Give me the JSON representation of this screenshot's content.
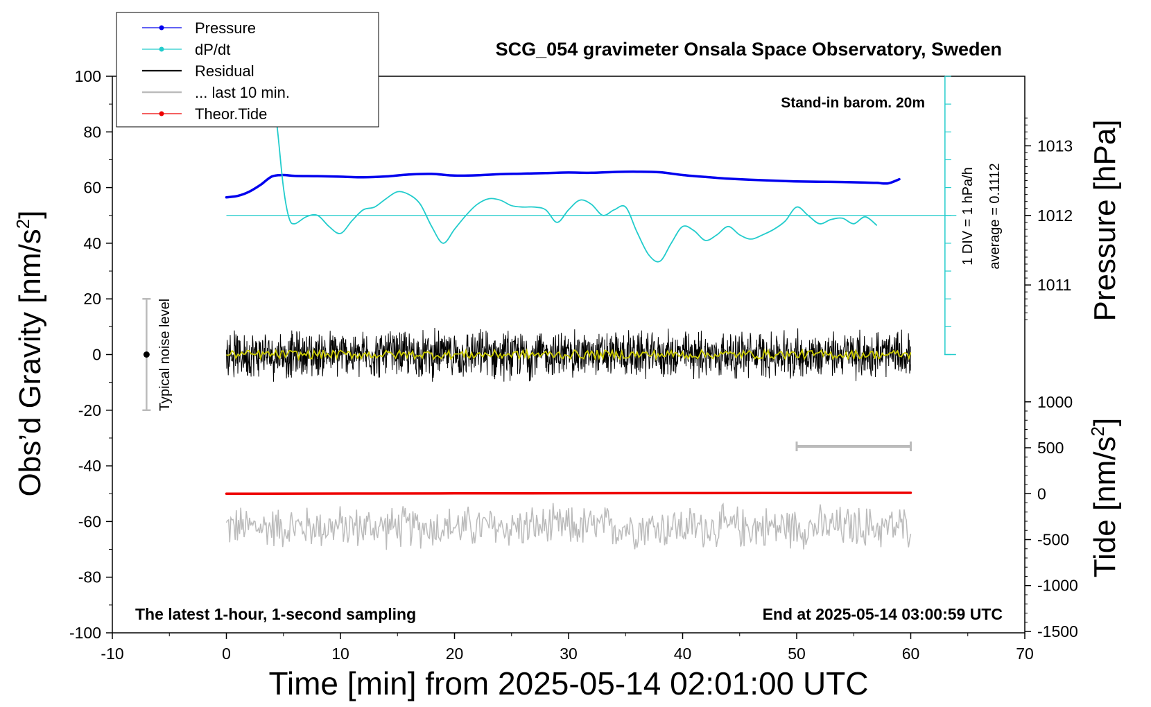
{
  "chart_data": {
    "type": "line",
    "title": "SCG_054 gravimeter Onsala Space Observatory, Sweden",
    "xlabel": "Time [min] from 2025-05-14 02:01:00 UTC",
    "ylabel_left": {
      "main": "Obs’d Gravity [nm/s",
      "sup": "2",
      "end": "]"
    },
    "ylabel_right_pressure": "Pressure [hPa]",
    "ylabel_right_tide": {
      "main": "Tide [nm/s",
      "sup": "2",
      "end": "]"
    },
    "xlim": [
      -10,
      70
    ],
    "ylim": [
      -100,
      100
    ],
    "x_ticks": [
      -10,
      0,
      10,
      20,
      30,
      40,
      50,
      60,
      70
    ],
    "y_ticks": [
      -100,
      -80,
      -60,
      -40,
      -20,
      0,
      20,
      40,
      60,
      80,
      100
    ],
    "pressure_axis": {
      "ticks": [
        1011,
        1012,
        1013
      ]
    },
    "tide_axis": {
      "ticks": [
        1000,
        500,
        0,
        -500,
        -1000,
        -1500
      ]
    },
    "annotations": {
      "barometer": "Stand-in barom. 20m",
      "div_scale": "1 DIV = 1 hPa/h",
      "average": "average = 0.1112",
      "noise": "Typical noise level",
      "bottom_left": "The latest 1-hour, 1-second sampling",
      "bottom_right": "End at 2025-05-14 03:00:59 UTC"
    },
    "legend": {
      "position": "top-left",
      "entries": [
        {
          "label": "Pressure",
          "color": "#0000ee",
          "marker": true
        },
        {
          "label": "dP/dt",
          "color": "#22cccc",
          "marker": true
        },
        {
          "label": "Residual",
          "color": "#000000",
          "marker": false
        },
        {
          "label": "... last 10 min.",
          "color": "#bbbbbb",
          "marker": false
        },
        {
          "label": "Theor.Tide",
          "color": "#ee0000",
          "marker": true
        }
      ]
    },
    "series": [
      {
        "name": "Pressure",
        "color": "#0000ee",
        "x": [
          0,
          1,
          2,
          3,
          4,
          5,
          6,
          8,
          10,
          12,
          14,
          16,
          18,
          20,
          22,
          24,
          26,
          28,
          30,
          32,
          34,
          36,
          38,
          40,
          42,
          44,
          46,
          48,
          50,
          52,
          54,
          56,
          57,
          58,
          59
        ],
        "y": [
          56.5,
          57,
          58.5,
          61,
          64,
          64.5,
          64.2,
          64.1,
          63.9,
          63.7,
          64,
          64.7,
          64.9,
          64.3,
          64.4,
          64.8,
          65,
          65.2,
          65.4,
          65.3,
          65.6,
          65.7,
          65.5,
          64.5,
          63.8,
          63.2,
          62.8,
          62.5,
          62.2,
          62.1,
          62,
          61.8,
          61.7,
          61.5,
          63
        ]
      },
      {
        "name": "dP/dt",
        "color": "#22cccc",
        "x": [
          4,
          4.5,
          5,
          5.5,
          6,
          7,
          8,
          9,
          10,
          11,
          12,
          13,
          14,
          15,
          16,
          17,
          18,
          19,
          20,
          21,
          22,
          23,
          24,
          25,
          26,
          27,
          28,
          29,
          30,
          31,
          32,
          33,
          34,
          35,
          36,
          37,
          38,
          39,
          40,
          41,
          42,
          43,
          44,
          45,
          46,
          47,
          48,
          49,
          50,
          51,
          52,
          53,
          54,
          55,
          56,
          57
        ],
        "y": [
          98,
          80,
          60,
          49,
          47,
          49.5,
          50,
          46,
          43.5,
          48,
          52,
          53,
          56,
          58.5,
          57.5,
          54,
          46,
          40,
          45,
          50,
          54,
          56,
          55.5,
          53.5,
          53,
          53,
          52,
          47.5,
          52,
          55.5,
          54,
          50,
          52,
          53,
          44,
          36,
          33.5,
          40,
          46,
          44.5,
          41,
          43,
          46,
          43,
          41.5,
          43,
          45,
          48,
          53,
          50,
          47,
          48.5,
          49,
          47,
          49.5,
          46.5
        ]
      },
      {
        "name": "Theor.Tide",
        "color": "#ee0000",
        "x": [
          0,
          20,
          40,
          60
        ],
        "y": [
          -50,
          -49.9,
          -49.8,
          -49.7
        ]
      }
    ],
    "residual": {
      "name": "Residual",
      "color": "#000000",
      "x_range": [
        0,
        60
      ],
      "mean": 0,
      "amplitude": 10,
      "smoothed_color": "#cccc00"
    },
    "last10": {
      "name": "... last 10 min.",
      "color": "#bbbbbb",
      "x_range": [
        0,
        60
      ],
      "center": -62,
      "amplitude": 9
    }
  }
}
